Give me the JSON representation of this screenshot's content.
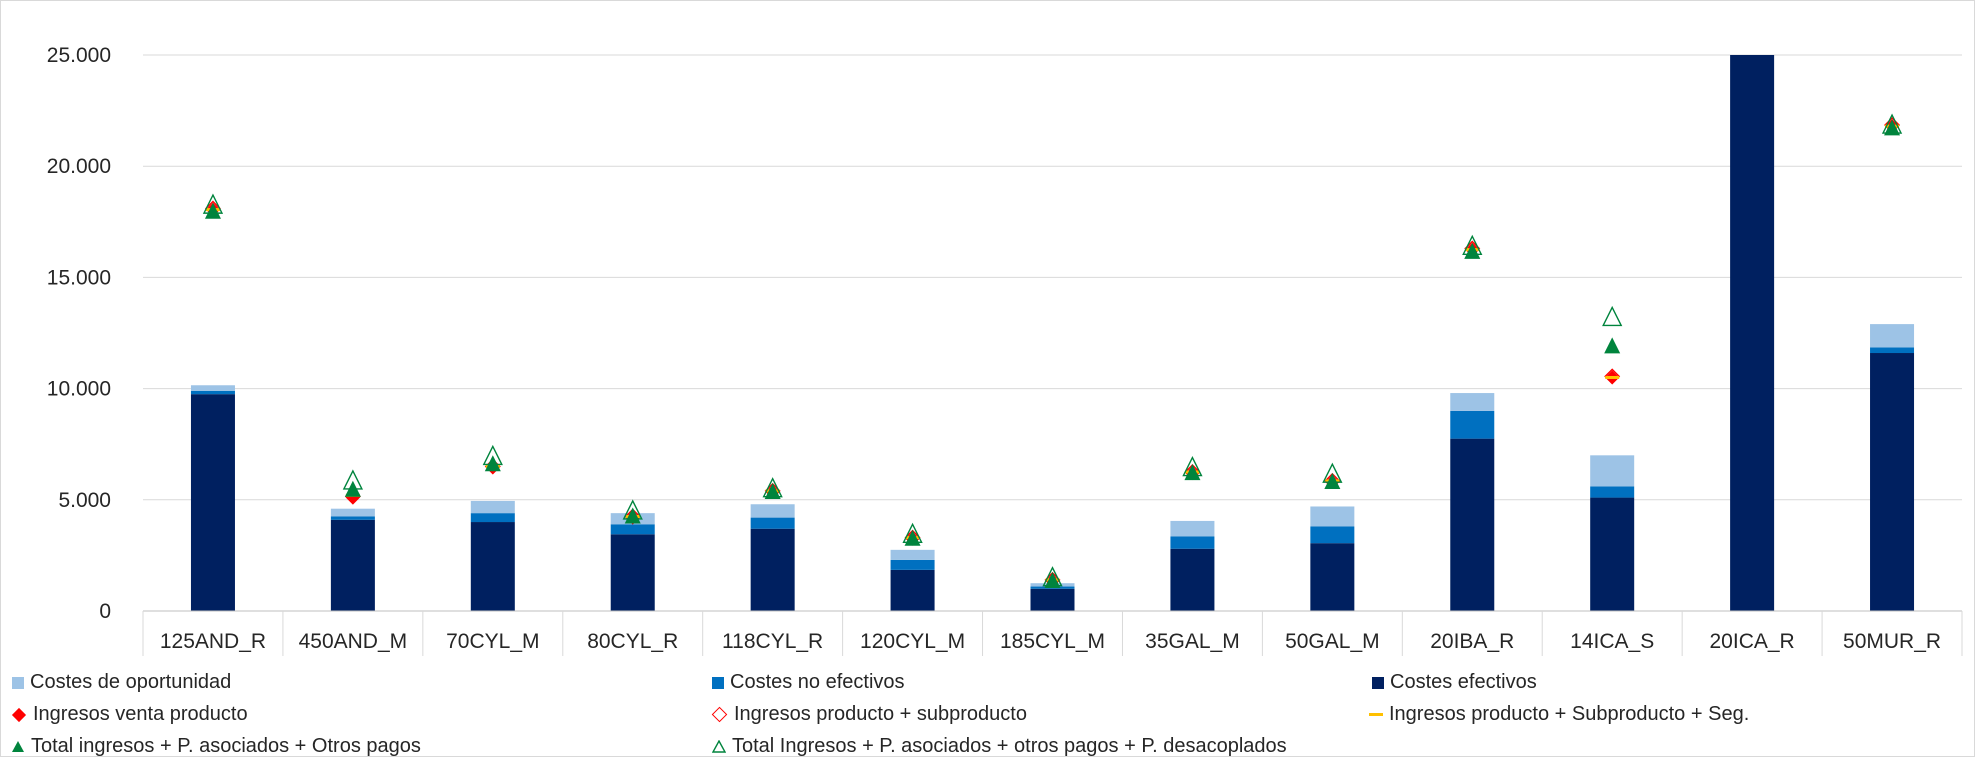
{
  "chart_data": {
    "type": "bar",
    "categories": [
      "125AND_R",
      "450AND_M",
      "70CYL_M",
      "80CYL_R",
      "118CYL_R",
      "120CYL_M",
      "185CYL_M",
      "35GAL_M",
      "50GAL_M",
      "20IBA_R",
      "14ICA_S",
      "20ICA_R",
      "50MUR_R"
    ],
    "ylim": [
      0,
      25000
    ],
    "yticks": [
      0,
      5000,
      10000,
      15000,
      20000,
      25000
    ],
    "ytick_labels": [
      "0",
      "5.000",
      "10.000",
      "15.000",
      "20.000",
      "25.000"
    ],
    "grid": true,
    "legend_position": "bottom",
    "stacked_series": [
      {
        "name": "Costes efectivos",
        "color": "#002060",
        "values": [
          9750,
          4100,
          4000,
          3450,
          3700,
          1850,
          1000,
          2800,
          3050,
          7750,
          5100,
          25000,
          11600
        ]
      },
      {
        "name": "Costes no efectivos",
        "color": "#0070c0",
        "values": [
          150,
          150,
          400,
          450,
          500,
          450,
          100,
          550,
          750,
          1250,
          500,
          0,
          250
        ]
      },
      {
        "name": "Costes de oportunidad",
        "color": "#9dc3e6",
        "values": [
          250,
          350,
          550,
          500,
          600,
          450,
          150,
          700,
          900,
          800,
          1400,
          0,
          1050
        ]
      }
    ],
    "marker_series": [
      {
        "name": "Ingresos venta producto",
        "marker": "diamond-filled",
        "color": "#ff0000",
        "values": [
          18050,
          5100,
          6450,
          4200,
          5350,
          3250,
          1350,
          6200,
          5800,
          16250,
          10500,
          null,
          21800
        ]
      },
      {
        "name": "Ingresos producto + subproducto",
        "marker": "diamond-open",
        "color": "#ff0000",
        "values": [
          18100,
          5150,
          6500,
          4250,
          5400,
          3300,
          1400,
          6250,
          5850,
          16300,
          10550,
          null,
          21850
        ]
      },
      {
        "name": "Ingresos producto + Subproducto + Seg.",
        "marker": "dash",
        "color": "#ffc000",
        "values": [
          18050,
          5200,
          6500,
          4250,
          5400,
          3300,
          1400,
          6250,
          5850,
          16250,
          10500,
          null,
          21800
        ]
      },
      {
        "name": "Total ingresos + P. asociados + Otros pagos",
        "marker": "triangle-filled",
        "color": "#00843d",
        "values": [
          17950,
          5450,
          6600,
          4250,
          5350,
          3250,
          1350,
          6200,
          5800,
          16150,
          11900,
          null,
          21700
        ]
      },
      {
        "name": "Total Ingresos + P. asociados + otros pagos + P. desacoplados",
        "marker": "triangle-open",
        "color": "#00843d",
        "values": [
          18250,
          5850,
          6950,
          4500,
          5500,
          3450,
          1500,
          6450,
          6150,
          16400,
          13200,
          null,
          21850
        ]
      }
    ]
  }
}
